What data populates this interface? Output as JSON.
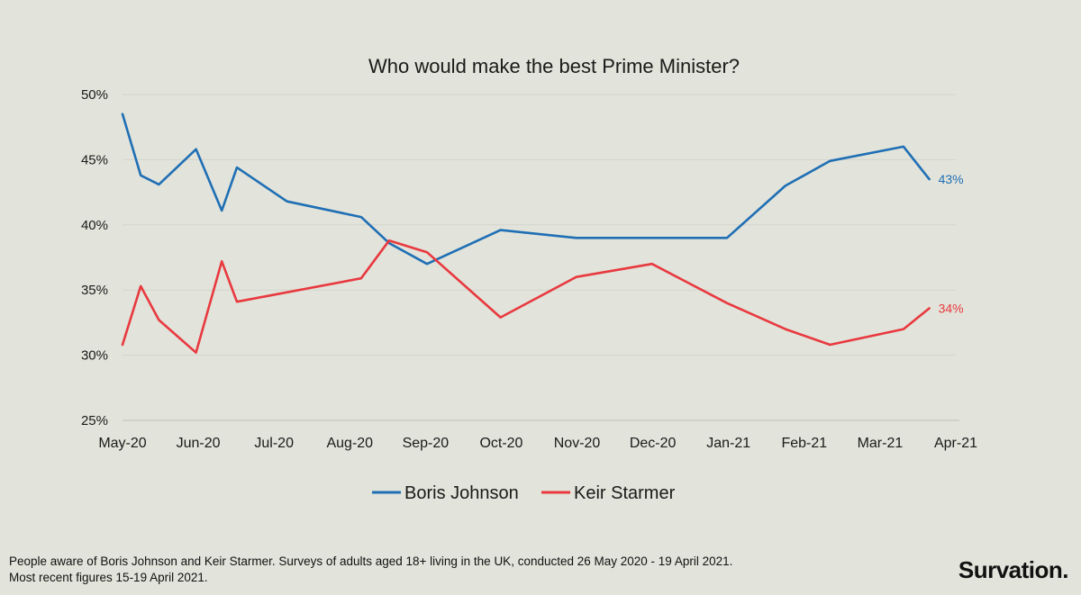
{
  "chart_data": {
    "type": "line",
    "title": "Who would make the best Prime Minister?",
    "xlabel": "",
    "ylabel": "",
    "ylim": [
      25,
      50
    ],
    "yticks": [
      {
        "value": 25,
        "label": "25%"
      },
      {
        "value": 30,
        "label": "30%"
      },
      {
        "value": 35,
        "label": "35%"
      },
      {
        "value": 40,
        "label": "40%"
      },
      {
        "value": 45,
        "label": "45%"
      },
      {
        "value": 50,
        "label": "50%"
      }
    ],
    "xlim": [
      0,
      11
    ],
    "xticks": [
      {
        "value": 0,
        "label": "May-20"
      },
      {
        "value": 1,
        "label": "Jun-20"
      },
      {
        "value": 2,
        "label": "Jul-20"
      },
      {
        "value": 3,
        "label": "Aug-20"
      },
      {
        "value": 4,
        "label": "Sep-20"
      },
      {
        "value": 5,
        "label": "Oct-20"
      },
      {
        "value": 6,
        "label": "Nov-20"
      },
      {
        "value": 7,
        "label": "Dec-20"
      },
      {
        "value": 8,
        "label": "Jan-21"
      },
      {
        "value": 9,
        "label": "Feb-21"
      },
      {
        "value": 10,
        "label": "Mar-21"
      },
      {
        "value": 11,
        "label": "Apr-21"
      }
    ],
    "grid": true,
    "legend_position": "bottom-center",
    "series": [
      {
        "name": "Boris Johnson",
        "color": "#1f6fb5",
        "end_label": "43%",
        "x": [
          0.0,
          0.24,
          0.48,
          0.97,
          1.31,
          1.51,
          2.17,
          3.15,
          3.52,
          4.02,
          4.99,
          5.99,
          6.99,
          7.98,
          8.75,
          9.34,
          10.31,
          10.65
        ],
        "y": [
          48.5,
          43.8,
          43.1,
          45.8,
          41.1,
          44.4,
          41.8,
          40.6,
          38.6,
          37.0,
          39.6,
          39.0,
          39.0,
          39.0,
          43.0,
          44.9,
          46.0,
          43.5
        ]
      },
      {
        "name": "Keir Starmer",
        "color": "#e8393f",
        "end_label": "34%",
        "x": [
          0.0,
          0.24,
          0.48,
          0.97,
          1.31,
          1.51,
          3.15,
          3.52,
          4.02,
          4.99,
          5.99,
          6.99,
          7.98,
          8.75,
          9.34,
          10.31,
          10.65
        ],
        "y": [
          30.8,
          35.3,
          32.7,
          30.2,
          37.2,
          34.1,
          35.9,
          38.8,
          37.9,
          32.9,
          36.0,
          37.0,
          34.0,
          32.0,
          30.8,
          32.0,
          33.6
        ]
      }
    ]
  },
  "footnote": {
    "line1": "People aware of Boris Johnson and Keir Starmer. Surveys of adults aged 18+ living in the UK, conducted 26 May 2020 - 19 April 2021.",
    "line2": "Most recent figures 15-19 April 2021."
  },
  "brand": "Survation."
}
